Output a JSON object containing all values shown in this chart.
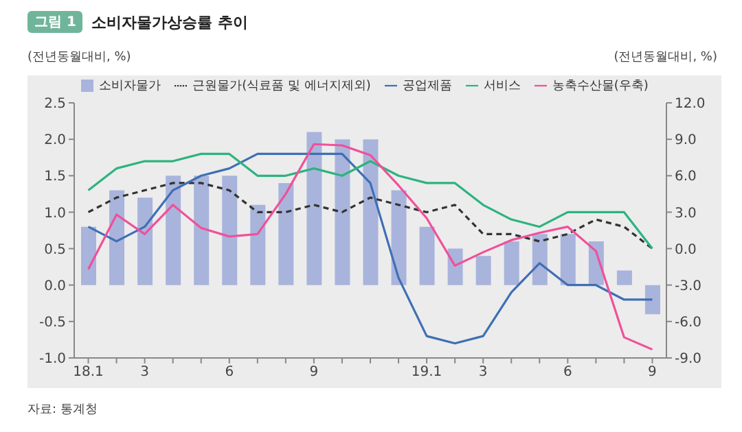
{
  "chart_data": {
    "type": "bar",
    "title": "소비자물가상승률 추이",
    "ylabel": "(전년동월대비, %)",
    "y2label": "(전년동월대비, %)",
    "annotations": [
      "그림 1",
      "자료: 통계청"
    ],
    "categories": [
      "18.1",
      null,
      "3",
      null,
      null,
      "6",
      null,
      null,
      "9",
      null,
      null,
      null,
      "19.1",
      null,
      "3",
      null,
      null,
      "6",
      null,
      null,
      "9"
    ],
    "series": [
      {
        "name": "소비자물가",
        "color": "#a9b4dc",
        "values": [
          0.8,
          1.3,
          1.2,
          1.5,
          1.5,
          1.5,
          1.1,
          1.4,
          2.1,
          2.0,
          2.0,
          1.3,
          0.8,
          0.5,
          0.4,
          0.6,
          0.7,
          0.7,
          0.6,
          0.2,
          -0.4
        ]
      },
      {
        "name": "근원물가(식료품 및 에너지제외)",
        "type": "line",
        "line_style": "dashed",
        "color": "#333333",
        "values": [
          1.0,
          1.2,
          1.3,
          1.4,
          1.4,
          1.3,
          1.0,
          1.0,
          1.1,
          1.0,
          1.2,
          1.1,
          1.0,
          1.1,
          0.7,
          0.7,
          0.6,
          0.7,
          0.9,
          0.8,
          0.5
        ]
      },
      {
        "name": "공업제품",
        "type": "line",
        "color": "#3f6fb5",
        "values": [
          0.8,
          0.6,
          0.8,
          1.3,
          1.5,
          1.6,
          1.8,
          1.8,
          1.8,
          1.8,
          1.4,
          0.1,
          -0.7,
          -0.8,
          -0.7,
          -0.1,
          0.3,
          0.0,
          0.0,
          -0.2,
          -0.2
        ]
      },
      {
        "name": "서비스",
        "type": "line",
        "color": "#2db37f",
        "values": [
          1.3,
          1.6,
          1.7,
          1.7,
          1.8,
          1.8,
          1.5,
          1.5,
          1.6,
          1.5,
          1.7,
          1.5,
          1.4,
          1.4,
          1.1,
          0.9,
          0.8,
          1.0,
          1.0,
          1.0,
          0.5
        ]
      },
      {
        "name": "농축수산물(우축)",
        "type": "line",
        "axis": "y2",
        "color": "#f0509a",
        "values": [
          -1.7,
          2.8,
          1.2,
          3.6,
          1.7,
          1.0,
          1.2,
          4.5,
          8.6,
          8.5,
          7.7,
          5.2,
          2.5,
          -1.4,
          -0.3,
          0.7,
          1.3,
          1.8,
          -0.2,
          -7.3,
          -8.3
        ]
      }
    ],
    "ylim": [
      -1.0,
      2.5
    ],
    "yticks": [
      {
        "value": -1,
        "label": "-1.0"
      },
      -0.5,
      {
        "value": 0,
        "label": "0.0"
      },
      0.5,
      {
        "value": 1,
        "label": "1.0"
      },
      1.5,
      {
        "value": 2,
        "label": "2.0"
      },
      2.5
    ],
    "y2lim": [
      -9.0,
      12.0
    ],
    "y2ticks": [
      {
        "value": -9,
        "label": "-9.0"
      },
      {
        "value": -6,
        "label": "-6.0"
      },
      {
        "value": -3,
        "label": "-3.0"
      },
      {
        "value": 0,
        "label": "0.0"
      },
      {
        "value": 3,
        "label": "3.0"
      },
      {
        "value": 6,
        "label": "6.0"
      },
      {
        "value": 9,
        "label": "9.0"
      },
      {
        "value": 12,
        "label": "12.0"
      }
    ],
    "grid": false,
    "marker": "none",
    "legend": "top"
  }
}
